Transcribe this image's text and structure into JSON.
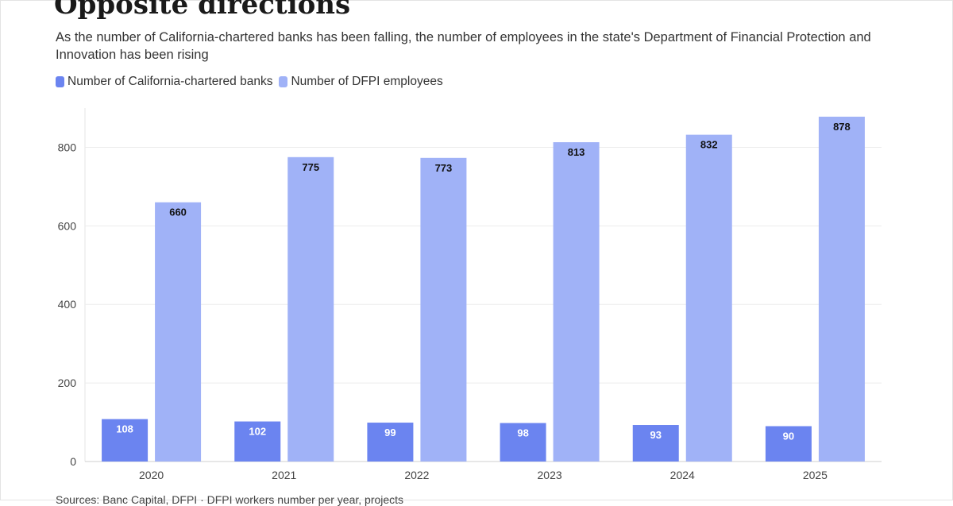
{
  "header": {
    "title": "Opposite directions",
    "subtitle": "As the number of California-chartered banks has been falling, the number of employees in the state's Department of Financial Protection and Innovation has been rising"
  },
  "footer": {
    "source": "Sources: Banc Capital, DFPI · DFPI workers number per year, projects"
  },
  "chart_data": {
    "type": "bar",
    "categories": [
      "2020",
      "2021",
      "2022",
      "2023",
      "2024",
      "2025"
    ],
    "series": [
      {
        "name": "Number of California-chartered banks",
        "values": [
          108,
          102,
          99,
          98,
          93,
          90
        ],
        "color": "#6b84f0"
      },
      {
        "name": "Number of DFPI employees",
        "values": [
          660,
          775,
          773,
          813,
          832,
          878
        ],
        "color": "#a0b2f7"
      }
    ],
    "title": "Opposite directions",
    "xlabel": "",
    "ylabel": "",
    "ylim": [
      0,
      900
    ],
    "yticks": [
      0,
      200,
      400,
      600,
      800
    ],
    "grid": true,
    "legend": "top-left"
  }
}
